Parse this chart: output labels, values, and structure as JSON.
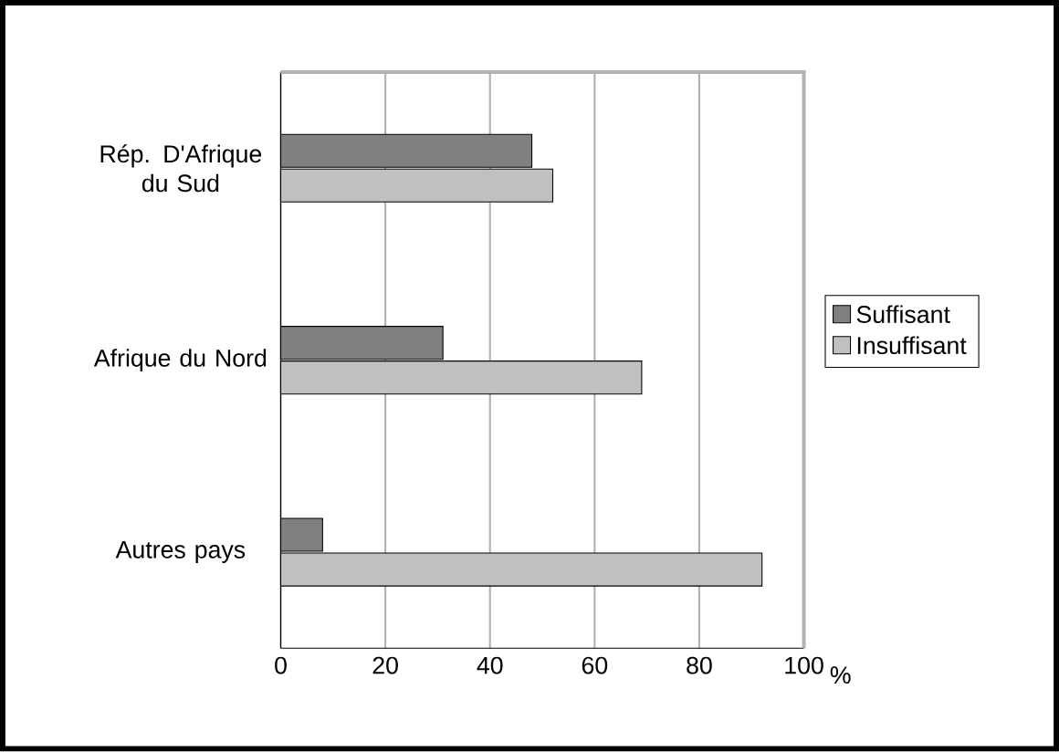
{
  "chart_data": {
    "type": "bar",
    "orientation": "horizontal",
    "xlabel": "%",
    "categories": [
      "Rép. D'Afrique du Sud",
      "Afrique du Nord",
      "Autres pays"
    ],
    "series": [
      {
        "name": "Suffisant",
        "color": "#808080",
        "values": [
          48,
          31,
          8
        ]
      },
      {
        "name": "Insuffisant",
        "color": "#c0c0c0",
        "values": [
          52,
          69,
          92
        ]
      }
    ],
    "xlim": [
      0,
      100
    ],
    "xticks": [
      0,
      20,
      40,
      60,
      80,
      100
    ],
    "grid": "x",
    "legend": "right"
  }
}
